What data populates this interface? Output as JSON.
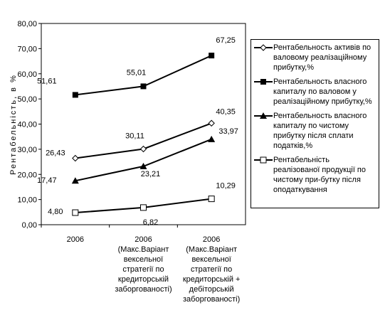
{
  "chart_data": {
    "type": "line",
    "y_label": "Рентабельність, в %",
    "categories": [
      "2006",
      "2006 (Макс.Варіант вексельної стратегії по кредиторській заборгованості)",
      "2006 (Макс.Варіант вексельної стратегії по кредиторській + дебіторській заборгованості)"
    ],
    "ylim": [
      0,
      80
    ],
    "yticks": [
      {
        "value": 0,
        "label": "0,00"
      },
      {
        "value": 10,
        "label": "10,00"
      },
      {
        "value": 20,
        "label": "20,00"
      },
      {
        "value": 30,
        "label": "30,00"
      },
      {
        "value": 40,
        "label": "40,00"
      },
      {
        "value": 50,
        "label": "50,00"
      },
      {
        "value": 60,
        "label": "60,00"
      },
      {
        "value": 70,
        "label": "70,00"
      },
      {
        "value": 80,
        "label": "80,00"
      }
    ],
    "series": [
      {
        "name": "Рентабельность активів по валовому реалізаційному прибутку,%",
        "color": "#000000",
        "marker": "diamond-open",
        "values": [
          26.43,
          30.11,
          40.35
        ],
        "value_labels": [
          "26,43",
          "30,11",
          "40,35"
        ]
      },
      {
        "name": "Рентабельность власного капиталу по валовом у реалізаційному прибутку,%",
        "color": "#000000",
        "marker": "square-filled",
        "values": [
          51.61,
          55.01,
          67.25
        ],
        "value_labels": [
          "51,61",
          "55,01",
          "67,25"
        ]
      },
      {
        "name": "Рентабельность власного капиталу по чистому прибутку після сплати податків,%",
        "color": "#000000",
        "marker": "triangle-filled",
        "values": [
          17.47,
          23.21,
          33.97
        ],
        "value_labels": [
          "17,47",
          "23,21",
          "33,97"
        ]
      },
      {
        "name": "Рентабельність реалізованої продукції по чистому при-бутку після оподаткування",
        "color": "#000000",
        "marker": "square-open",
        "values": [
          4.8,
          6.82,
          10.29
        ],
        "value_labels": [
          "4,80",
          "6,82",
          "10,29"
        ]
      }
    ]
  }
}
